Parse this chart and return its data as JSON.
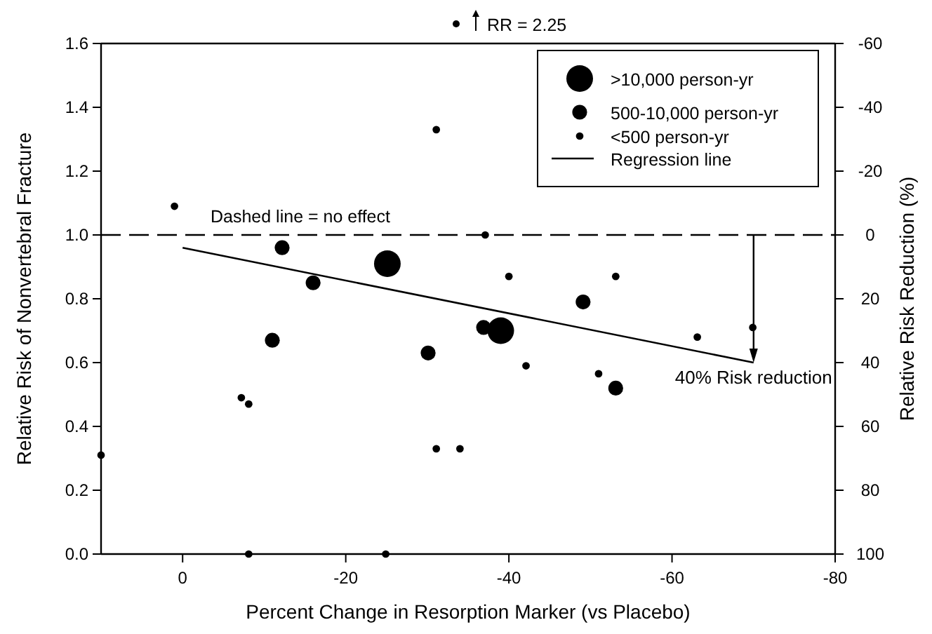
{
  "chart_data": {
    "type": "bubble",
    "xlabel": "Percent Change in Resorption Marker (vs Placebo)",
    "ylabel": "Relative Risk of Nonvertebral Fracture",
    "y2label": "Relative Risk Reduction (%)",
    "xlim": [
      10,
      -80
    ],
    "xticks": [
      0,
      -20,
      -40,
      -60,
      -80
    ],
    "ylim": [
      0,
      1.6
    ],
    "yticks": [
      {
        "value": 0,
        "label": "0.0"
      },
      {
        "value": 0.2,
        "label": "0.2"
      },
      {
        "value": 0.4,
        "label": "0.4"
      },
      {
        "value": 0.6,
        "label": "0.6"
      },
      {
        "value": 0.8,
        "label": "0.8"
      },
      {
        "value": 1,
        "label": "1.0"
      },
      {
        "value": 1.2,
        "label": "1.2"
      },
      {
        "value": 1.4,
        "label": "1.4"
      },
      {
        "value": 1.6,
        "label": "1.6"
      }
    ],
    "y2lim": [
      100,
      -60
    ],
    "y2ticks": [
      -60,
      -40,
      -20,
      0,
      20,
      40,
      60,
      80,
      100
    ],
    "series": [
      {
        "name": ">10,000 person-yr",
        "color": "#000000",
        "x": [
          -25.1,
          -39
        ],
        "values": [
          0.91,
          0.7
        ],
        "sizes": [
          1,
          1
        ]
      },
      {
        "name": "500-10,000 person-yr",
        "color": "#000000",
        "x": [
          -12.2,
          -16,
          -11,
          -30.1,
          -36.9,
          -49.1,
          -53.1
        ],
        "values": [
          0.96,
          0.85,
          0.67,
          0.63,
          0.71,
          0.79,
          0.52
        ],
        "sizes": [
          0.31,
          0.31,
          0.31,
          0.31,
          0.31,
          0.31,
          0.31
        ]
      },
      {
        "name": "<500 person-yr",
        "color": "#000000",
        "x": [
          10,
          1,
          -7.2,
          -8.1,
          -8.1,
          -24.9,
          -31.1,
          -34,
          -31.1,
          -37.1,
          -40,
          -53.1,
          -63.1,
          -42.1,
          -51,
          -69.9
        ],
        "values": [
          0.31,
          1.09,
          0.49,
          0.47,
          0,
          0,
          0.33,
          0.33,
          1.33,
          1,
          0.87,
          0.87,
          0.68,
          0.59,
          0.565,
          0.71
        ],
        "sizes": [
          0.08,
          0.08,
          0.08,
          0.08,
          0.08,
          0.08,
          0.08,
          0.08,
          0.08,
          0.08,
          0.08,
          0.08,
          0.08,
          0.08,
          0.08,
          0.08
        ]
      },
      {
        "name": "Regression line",
        "type": "line",
        "marker": "none",
        "color": "#000000",
        "x": [
          0,
          -70
        ],
        "values": [
          0.96,
          0.6
        ]
      }
    ],
    "ref_lines": [
      {
        "axis": "y",
        "value": 1,
        "label": "Dashed line = no effect",
        "line_style": "dashed",
        "color": "#000000"
      }
    ],
    "annotations": [
      "RR = 2.25",
      {
        "text": "40% Risk reduction",
        "x": -70,
        "y": 0.6
      }
    ],
    "legend": "top right",
    "grid": false,
    "marker": "circle"
  }
}
